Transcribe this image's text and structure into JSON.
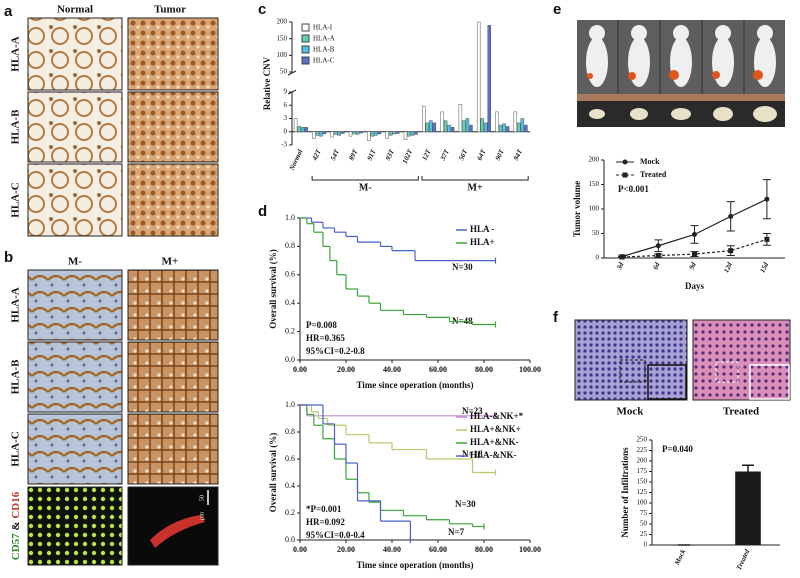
{
  "panels": {
    "a": {
      "label": "a",
      "columns": [
        "Normal",
        "Tumor"
      ],
      "rows": [
        "HLA-A",
        "HLA-B",
        "HLA-C"
      ]
    },
    "b": {
      "label": "b",
      "columns": [
        "M-",
        "M+"
      ],
      "rows": [
        "HLA-A",
        "HLA-B",
        "HLA-C"
      ],
      "stain": [
        "CD57",
        "&",
        "CD16"
      ],
      "scale": "50",
      "unit": "μm"
    },
    "c": {
      "label": "c"
    },
    "d": {
      "label": "d"
    },
    "e": {
      "label": "e"
    },
    "f": {
      "label": "f",
      "captions": [
        "Mock",
        "Treated"
      ]
    }
  },
  "chart_data": [
    {
      "type": "bar",
      "ylabel": "Relative CNV",
      "categories": [
        "Normal",
        "42T",
        "54T",
        "89T",
        "91T",
        "93T",
        "102T",
        "12T",
        "37T",
        "56T",
        "64T",
        "90T",
        "94T"
      ],
      "groups": [
        "M-",
        "M+"
      ],
      "series": [
        {
          "name": "HLA-I",
          "color": "#ffffff",
          "values": [
            3,
            -1.5,
            -1.2,
            -1,
            -2,
            -1.5,
            -1.8,
            5.8,
            4.5,
            6.2,
            200,
            4.5,
            4.5
          ]
        },
        {
          "name": "HLA-A",
          "color": "#5fd1b0",
          "values": [
            1.2,
            -0.8,
            -0.6,
            -0.5,
            -1,
            -0.8,
            -1,
            2,
            2.5,
            2.5,
            3,
            1.5,
            2
          ]
        },
        {
          "name": "HLA-B",
          "color": "#4cc0e6",
          "values": [
            1,
            -1,
            -0.8,
            -0.6,
            -0.8,
            -0.5,
            -0.8,
            2.5,
            1.5,
            3,
            2,
            1.8,
            3
          ]
        },
        {
          "name": "HLA-C",
          "color": "#5a6fd0",
          "values": [
            1,
            -0.5,
            -0.4,
            -0.3,
            -0.5,
            -0.4,
            -0.6,
            2,
            1,
            1.5,
            190,
            1.2,
            1.5
          ]
        }
      ],
      "ylim": [
        -3,
        200
      ],
      "axis_break": [
        9,
        50
      ],
      "yticks": [
        -3,
        0,
        3,
        6,
        9,
        50,
        100,
        150,
        200
      ]
    },
    {
      "type": "survival",
      "xlabel": "Time since operation (months)",
      "ylabel": "Overall survival (%)",
      "legend": "upper right",
      "xlim": [
        0,
        100
      ],
      "xticks": [
        {
          "value": 0,
          "label": "0.00"
        },
        {
          "value": 20,
          "label": "20.00"
        },
        {
          "value": 40,
          "label": "40.00"
        },
        {
          "value": 60,
          "label": "60.00"
        },
        {
          "value": 80,
          "label": "80.00"
        },
        {
          "value": 100,
          "label": "100.00"
        }
      ],
      "ylim": [
        0,
        1
      ],
      "yticks": [
        {
          "value": 0,
          "label": "0.0"
        },
        0.2,
        0.4,
        0.6,
        0.8,
        {
          "value": 1,
          "label": "1.0"
        }
      ],
      "series": [
        {
          "name": "HLA -",
          "color": "#4a62c8",
          "x": [
            0,
            5,
            10,
            15,
            20,
            25,
            35,
            40,
            50,
            85
          ],
          "values": [
            1,
            0.97,
            0.93,
            0.9,
            0.87,
            0.83,
            0.8,
            0.77,
            0.7,
            0.7
          ]
        },
        {
          "name": "HLA+",
          "color": "#3aa33a",
          "x": [
            0,
            3,
            6,
            10,
            13,
            16,
            20,
            25,
            30,
            35,
            45,
            55,
            65,
            75,
            85
          ],
          "values": [
            1,
            0.96,
            0.9,
            0.8,
            0.7,
            0.6,
            0.5,
            0.45,
            0.4,
            0.35,
            0.32,
            0.3,
            0.27,
            0.25,
            0.25
          ]
        }
      ],
      "annotations": [
        "N=30",
        "N=48",
        "P=0.008",
        "HR=0.365",
        "95%CI=0.2-0.8"
      ]
    },
    {
      "type": "survival",
      "xlabel": "Time since operation (months)",
      "ylabel": "Overall survival (%)",
      "legend": "upper right",
      "xlim": [
        0,
        100
      ],
      "xticks": [
        {
          "value": 0,
          "label": "0.00"
        },
        {
          "value": 20,
          "label": "20.00"
        },
        {
          "value": 40,
          "label": "40.00"
        },
        {
          "value": 60,
          "label": "60.00"
        },
        {
          "value": 80,
          "label": "80.00"
        },
        {
          "value": 100,
          "label": "100.00"
        }
      ],
      "ylim": [
        0,
        1
      ],
      "yticks": [
        {
          "value": 0,
          "label": "0.0"
        },
        0.2,
        0.4,
        0.6,
        0.8,
        {
          "value": 1,
          "label": "1.0"
        }
      ],
      "series": [
        {
          "name": "HLA-&NK+*",
          "color": "#c68ad8",
          "x": [
            0,
            3,
            85
          ],
          "values": [
            1,
            0.92,
            0.92
          ]
        },
        {
          "name": "HLA+&NK+",
          "color": "#b8c96a",
          "x": [
            0,
            5,
            8,
            12,
            20,
            30,
            40,
            55,
            75,
            85
          ],
          "values": [
            1,
            0.95,
            0.9,
            0.85,
            0.78,
            0.72,
            0.67,
            0.6,
            0.5,
            0.5
          ]
        },
        {
          "name": "HLA+&NK-",
          "color": "#3aa33a",
          "x": [
            0,
            3,
            6,
            10,
            15,
            20,
            25,
            30,
            35,
            45,
            55,
            65,
            75,
            80
          ],
          "values": [
            1,
            0.93,
            0.85,
            0.75,
            0.6,
            0.45,
            0.35,
            0.28,
            0.22,
            0.18,
            0.15,
            0.12,
            0.1,
            0.1
          ]
        },
        {
          "name": "HLA-&NK-",
          "color": "#4a62c8",
          "x": [
            0,
            10,
            15,
            20,
            25,
            35,
            48
          ],
          "values": [
            1,
            0.86,
            0.71,
            0.57,
            0.29,
            0.14,
            0
          ]
        }
      ],
      "annotations": [
        "N=23",
        "N=18",
        "N=30",
        "N=7",
        "*P=0.001",
        "HR=0.092",
        "95%CI=0.0-0.4"
      ]
    },
    {
      "type": "line",
      "xlabel": "Days",
      "ylabel": "Tumor volume",
      "categories": [
        "3d",
        "6d",
        "9d",
        "12d",
        "15d"
      ],
      "ylim": [
        0,
        200
      ],
      "yticks": [
        0,
        50,
        100,
        150,
        200
      ],
      "series": [
        {
          "name": "Mock",
          "color": "#222222",
          "marker": "circle",
          "dash": false,
          "values": [
            3,
            25,
            48,
            85,
            120
          ],
          "errors": [
            3,
            12,
            18,
            30,
            40
          ]
        },
        {
          "name": "Treated",
          "color": "#222222",
          "marker": "square",
          "dash": true,
          "values": [
            2,
            5,
            8,
            15,
            38
          ],
          "errors": [
            1,
            3,
            5,
            10,
            12
          ]
        }
      ],
      "annotations": [
        "P<0.001"
      ]
    },
    {
      "type": "bar",
      "ylabel": "Number of Infiltrations",
      "categories": [
        "Mock",
        "Treated"
      ],
      "values": [
        0,
        175
      ],
      "errors": [
        0,
        15
      ],
      "color": "#1a1a1a",
      "ylim": [
        0,
        250
      ],
      "yticks": [
        0,
        25,
        50,
        75,
        100,
        125,
        150,
        175,
        200,
        225,
        250
      ],
      "annotations": [
        "P=0.040"
      ]
    }
  ]
}
